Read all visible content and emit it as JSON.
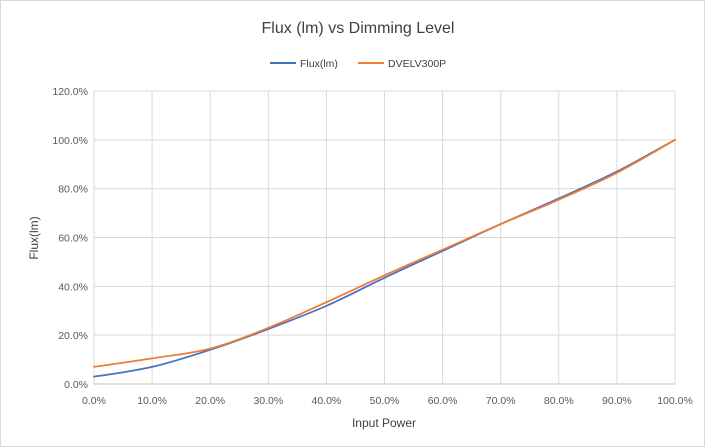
{
  "chart_data": {
    "type": "line",
    "title": "Flux (lm) vs Dimming  Level",
    "xlabel": "Input Power",
    "ylabel": "Flux(lm)",
    "xlim": [
      0,
      100
    ],
    "ylim": [
      0,
      120
    ],
    "x_ticks": [
      "0.0%",
      "10.0%",
      "20.0%",
      "30.0%",
      "40.0%",
      "50.0%",
      "60.0%",
      "70.0%",
      "80.0%",
      "90.0%",
      "100.0%"
    ],
    "y_ticks": [
      "0.0%",
      "20.0%",
      "40.0%",
      "60.0%",
      "80.0%",
      "100.0%",
      "120.0%"
    ],
    "grid": true,
    "legend_position": "top",
    "x": [
      0,
      10,
      20,
      30,
      40,
      50,
      60,
      70,
      80,
      90,
      100
    ],
    "series": [
      {
        "name": "Flux(lm)",
        "color": "#4472c4",
        "values": [
          3,
          7,
          14,
          22.5,
          32,
          43.5,
          54.5,
          65.5,
          76,
          87,
          100
        ]
      },
      {
        "name": "DVELV300P",
        "color": "#ed7d31",
        "values": [
          7,
          10.5,
          14.5,
          23,
          33.5,
          44.5,
          55,
          65.5,
          75.5,
          86.5,
          100
        ]
      }
    ]
  }
}
